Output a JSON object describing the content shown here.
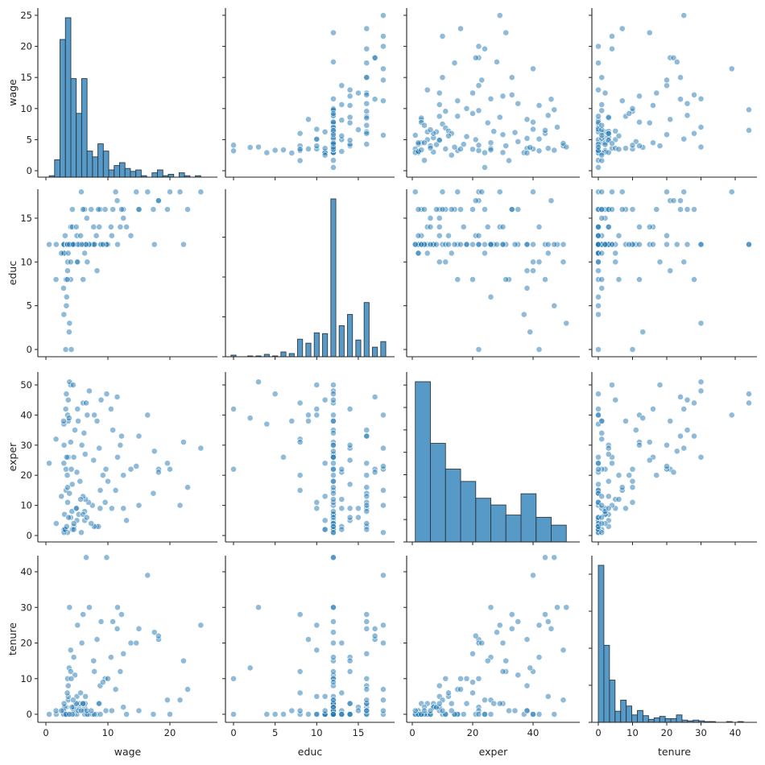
{
  "chart_data": {
    "type": "pairplot",
    "variables": [
      "wage",
      "educ",
      "exper",
      "tenure"
    ],
    "axis_labels": {
      "wage": "wage",
      "educ": "educ",
      "exper": "exper",
      "tenure": "tenure"
    },
    "ticks": {
      "wage_x": [
        0,
        10,
        20
      ],
      "wage_y": [
        0,
        5,
        10,
        15,
        20,
        25
      ],
      "educ": [
        0,
        5,
        10,
        15
      ],
      "exper": [
        0,
        20,
        40
      ],
      "exper_y": [
        0,
        10,
        20,
        30,
        40,
        50
      ],
      "tenure_x": [
        0,
        10,
        20,
        30,
        40
      ],
      "tenure_y": [
        0,
        10,
        20,
        30,
        40
      ]
    },
    "color": "#1f77b4",
    "offdiagonal": "scatter",
    "diagonal": "histogram",
    "histograms": {
      "wage": {
        "start": 0.53,
        "width": 0.873,
        "counts": [
          1,
          12,
          95,
          110,
          68,
          44,
          68,
          18,
          14,
          23,
          18,
          5,
          8,
          10,
          6,
          4,
          5,
          1,
          0,
          3,
          5,
          1,
          2,
          0,
          3,
          1,
          0,
          1
        ]
      },
      "educ": {
        "discrete": true,
        "values": [
          0,
          2,
          3,
          4,
          5,
          6,
          7,
          8,
          9,
          10,
          11,
          12,
          13,
          14,
          15,
          16,
          17,
          18
        ],
        "counts": [
          2,
          1,
          1,
          3,
          1,
          6,
          4,
          22,
          17,
          30,
          29,
          198,
          39,
          53,
          21,
          68,
          12,
          19
        ]
      },
      "exper": {
        "start": 1,
        "width": 5,
        "counts": [
          143,
          88,
          65,
          54,
          39,
          33,
          24,
          43,
          22,
          15
        ]
      },
      "tenure": {
        "start": 0,
        "width": 1.63,
        "counts": [
          212,
          104,
          57,
          15,
          30,
          22,
          10,
          16,
          9,
          4,
          6,
          8,
          5,
          5,
          10,
          3,
          2,
          3,
          2,
          1,
          1,
          0,
          0,
          1,
          0,
          1,
          0
        ]
      }
    },
    "rows": [
      [
        3.1,
        11,
        2,
        0
      ],
      [
        3.24,
        12,
        22,
        2
      ],
      [
        3,
        11,
        2,
        0
      ],
      [
        6,
        8,
        44,
        28
      ],
      [
        5.3,
        12,
        7,
        2
      ],
      [
        8.75,
        16,
        9,
        8
      ],
      [
        11.25,
        18,
        15,
        7
      ],
      [
        5,
        12,
        5,
        3
      ],
      [
        3.6,
        12,
        26,
        4
      ],
      [
        18.18,
        17,
        22,
        21
      ],
      [
        6.25,
        16,
        8,
        2
      ],
      [
        8.13,
        13,
        3,
        0
      ],
      [
        8.77,
        12,
        15,
        0
      ],
      [
        5.5,
        12,
        18,
        3
      ],
      [
        22.2,
        12,
        31,
        15
      ],
      [
        17.33,
        16,
        14,
        0
      ],
      [
        7.5,
        12,
        10,
        0
      ],
      [
        10.63,
        13,
        9,
        1
      ],
      [
        3.6,
        12,
        38,
        8
      ],
      [
        4.5,
        12,
        3,
        0
      ],
      [
        6.88,
        12,
        11,
        0
      ],
      [
        8.48,
        16,
        3,
        3
      ],
      [
        6.33,
        12,
        27,
        3
      ],
      [
        0.53,
        12,
        24,
        0
      ],
      [
        6,
        12,
        7,
        3
      ],
      [
        9.56,
        16,
        11,
        10
      ],
      [
        7.78,
        12,
        3,
        0
      ],
      [
        12.5,
        16,
        20,
        17
      ],
      [
        12.5,
        15,
        9,
        2
      ],
      [
        3.25,
        8,
        15,
        0
      ],
      [
        13,
        14,
        5,
        0
      ],
      [
        4.5,
        12,
        26,
        16
      ],
      [
        9.68,
        12,
        22,
        1
      ],
      [
        5,
        13,
        21,
        0
      ],
      [
        4.68,
        12,
        35,
        11
      ],
      [
        4.27,
        16,
        2,
        0
      ],
      [
        6.15,
        12,
        34,
        1
      ],
      [
        3.51,
        10,
        11,
        0
      ],
      [
        3,
        12,
        7,
        2
      ],
      [
        6.25,
        11,
        5,
        0
      ],
      [
        7.81,
        12,
        40,
        12
      ],
      [
        10,
        12,
        18,
        10
      ],
      [
        4.5,
        12,
        2,
        1
      ],
      [
        4,
        14,
        6,
        0
      ],
      [
        6.38,
        12,
        12,
        5
      ],
      [
        13.7,
        13,
        22,
        20
      ],
      [
        1.67,
        12,
        4,
        0
      ],
      [
        2.93,
        12,
        30,
        3
      ],
      [
        3.65,
        12,
        6,
        0
      ],
      [
        2.9,
        11,
        24,
        0
      ],
      [
        1.63,
        8,
        32,
        1
      ],
      [
        8.6,
        14,
        29,
        3
      ],
      [
        5,
        10,
        9,
        5
      ],
      [
        3.5,
        12,
        1,
        0
      ],
      [
        2.92,
        12,
        2,
        0
      ],
      [
        4.5,
        12,
        4,
        2
      ],
      [
        15,
        16,
        10,
        1
      ],
      [
        2.92,
        12,
        1,
        0
      ],
      [
        3.1,
        13,
        2,
        0
      ],
      [
        5.99,
        16,
        13,
        3
      ],
      [
        20,
        18,
        22,
        0
      ],
      [
        21.63,
        18,
        10,
        4
      ],
      [
        15,
        16,
        33,
        24
      ],
      [
        3.35,
        6,
        26,
        0
      ],
      [
        5.2,
        12,
        38,
        1
      ],
      [
        4,
        10,
        50,
        18
      ],
      [
        3.35,
        12,
        3,
        0
      ],
      [
        4.25,
        14,
        17,
        0
      ],
      [
        8.25,
        9,
        38,
        21
      ],
      [
        3.5,
        12,
        16,
        10
      ],
      [
        11.56,
        12,
        26,
        30
      ],
      [
        5.71,
        18,
        1,
        1
      ],
      [
        3.5,
        9,
        40,
        0
      ],
      [
        3.6,
        11,
        45,
        5
      ],
      [
        7,
        12,
        48,
        30
      ],
      [
        3.75,
        2,
        39,
        13
      ],
      [
        2.9,
        4,
        37,
        0
      ],
      [
        4,
        8,
        31,
        12
      ],
      [
        6.67,
        10,
        40,
        0
      ],
      [
        3.3,
        5,
        47,
        0
      ],
      [
        2.85,
        7,
        38,
        1
      ],
      [
        3.81,
        3,
        51,
        30
      ],
      [
        24.98,
        18,
        29,
        25
      ],
      [
        22.86,
        16,
        16,
        7
      ],
      [
        18.16,
        17,
        21,
        22
      ],
      [
        17.5,
        12,
        28,
        23
      ],
      [
        10.5,
        14,
        42,
        16
      ],
      [
        11.5,
        17,
        46,
        24
      ],
      [
        12.2,
        16,
        33,
        28
      ],
      [
        6.5,
        12,
        44,
        44
      ],
      [
        9.8,
        12,
        47,
        44
      ],
      [
        3.2,
        0,
        42,
        0
      ],
      [
        4.1,
        0,
        22,
        10
      ],
      [
        14.58,
        18,
        23,
        20
      ],
      [
        12,
        14,
        30,
        12
      ],
      [
        8.9,
        12,
        45,
        26
      ],
      [
        4.2,
        12,
        8,
        2
      ],
      [
        5.6,
        13,
        12,
        6
      ],
      [
        6.6,
        15,
        6,
        1
      ],
      [
        3.8,
        12,
        14,
        0
      ],
      [
        4.9,
        14,
        9,
        3
      ],
      [
        7.3,
        16,
        4,
        1
      ],
      [
        2.5,
        11,
        13,
        1
      ],
      [
        5.8,
        12,
        30,
        20
      ],
      [
        10.8,
        16,
        35,
        26
      ],
      [
        9.2,
        12,
        20,
        9
      ],
      [
        3.45,
        8,
        20,
        6
      ],
      [
        7.7,
        14,
        25,
        15
      ],
      [
        19.6,
        16,
        24,
        4
      ],
      [
        16.4,
        18,
        40,
        39
      ],
      [
        5.1,
        10,
        42,
        25
      ],
      [
        4.4,
        12,
        50,
        4
      ]
    ]
  }
}
